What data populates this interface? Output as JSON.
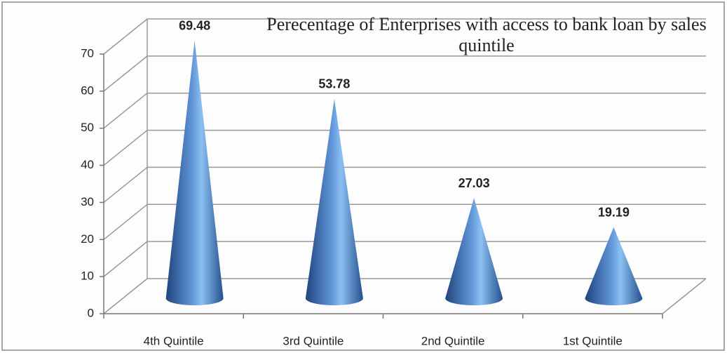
{
  "chart_data": {
    "type": "cone",
    "title": "Perecentage of Enterprises with access to bank loan by sales quintile",
    "categories": [
      "4th Quintile",
      "3rd Quintile",
      "2nd Quintile",
      "1st Quintile"
    ],
    "values": [
      69.48,
      53.78,
      27.03,
      19.19
    ],
    "color": "#4a7cc0",
    "ylim": [
      0,
      70
    ],
    "yticks": [
      0,
      10,
      20,
      30,
      40,
      50,
      60,
      70
    ],
    "grid": true
  }
}
